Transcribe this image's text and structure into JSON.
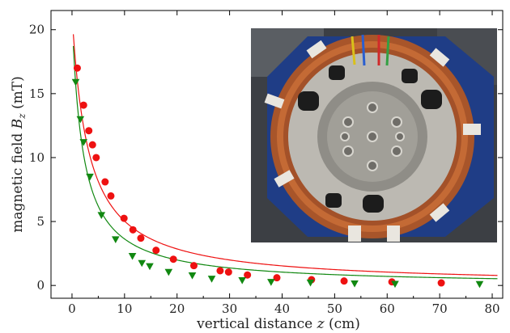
{
  "chart_data": {
    "type": "scatter",
    "xlabel": "vertical distance z (cm)",
    "ylabel": "magnetic field B_z (mT)",
    "xlabel_parts": {
      "pre": "vertical distance ",
      "var": "z",
      "post": " (cm)"
    },
    "ylabel_parts": {
      "pre": "magnetic field ",
      "var": "B",
      "sub": "z",
      "post": " (mT)"
    },
    "xlim": [
      -4,
      82
    ],
    "ylim": [
      -1,
      21.5
    ],
    "xticks": [
      0,
      10,
      20,
      30,
      40,
      50,
      60,
      70,
      80
    ],
    "yticks": [
      0,
      5,
      10,
      15,
      20
    ],
    "grid": false,
    "series": [
      {
        "marker": "circle",
        "color": "#ee1111",
        "points": [
          [
            1,
            17
          ],
          [
            2.2,
            14.1
          ],
          [
            3.2,
            12.1
          ],
          [
            3.9,
            11
          ],
          [
            4.6,
            10
          ],
          [
            6.3,
            8.1
          ],
          [
            7.4,
            7
          ],
          [
            9.9,
            5.25
          ],
          [
            11.6,
            4.35
          ],
          [
            13.1,
            3.7
          ],
          [
            16,
            2.75
          ],
          [
            19.3,
            2.05
          ],
          [
            23.2,
            1.55
          ],
          [
            28.2,
            1.15
          ],
          [
            29.8,
            1.05
          ],
          [
            33.4,
            0.82
          ],
          [
            39,
            0.6
          ],
          [
            45.6,
            0.45
          ],
          [
            51.8,
            0.35
          ],
          [
            60.9,
            0.28
          ],
          [
            70.3,
            0.2
          ]
        ],
        "fit": {
          "a": 66,
          "b": 3.11
        }
      },
      {
        "marker": "triangle-down",
        "color": "#118811",
        "points": [
          [
            0.7,
            15.9
          ],
          [
            1.6,
            13
          ],
          [
            2.2,
            11.2
          ],
          [
            3.4,
            8.5
          ],
          [
            5.6,
            5.5
          ],
          [
            8.3,
            3.6
          ],
          [
            11.5,
            2.3
          ],
          [
            13.3,
            1.75
          ],
          [
            14.8,
            1.5
          ],
          [
            18.4,
            1.05
          ],
          [
            22.9,
            0.78
          ],
          [
            26.6,
            0.52
          ],
          [
            32.4,
            0.4
          ],
          [
            37.9,
            0.27
          ],
          [
            45.4,
            0.22
          ],
          [
            53.8,
            0.15
          ],
          [
            61.5,
            0.12
          ],
          [
            77.6,
            0.1
          ]
        ],
        "fit": {
          "a": 44,
          "b": 2.1
        }
      }
    ]
  },
  "photo": {
    "description_icon": "magnetic-coil-photo",
    "coil_color": "#b5622e",
    "frame_color": "#1a3a80"
  }
}
